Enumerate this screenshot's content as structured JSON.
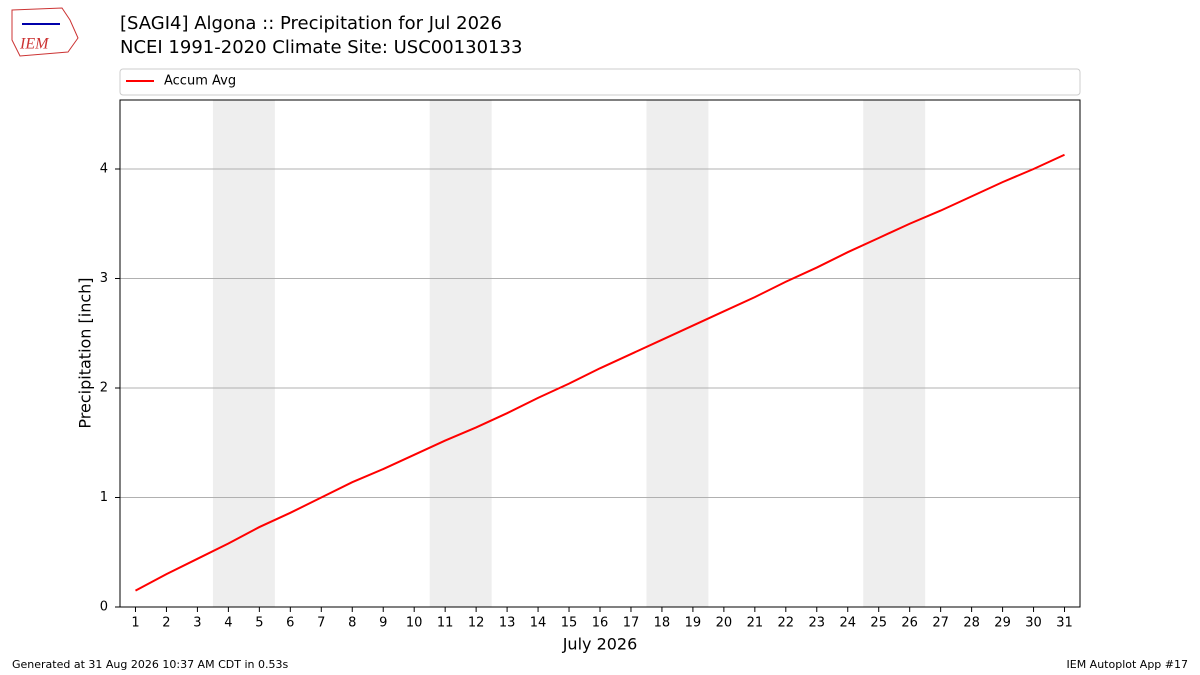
{
  "logo_text": "IEM",
  "footer": {
    "left": "Generated at 31 Aug 2026 10:37 AM CDT in 0.53s",
    "right": "IEM Autoplot App #17"
  },
  "chart_data": {
    "type": "line",
    "title": "[SAGI4] Algona :: Precipitation for Jul 2026",
    "subtitle": "NCEI 1991-2020 Climate Site: USC00130133",
    "xlabel": "July 2026",
    "ylabel": "Precipitation [inch]",
    "x": [
      1,
      2,
      3,
      4,
      5,
      6,
      7,
      8,
      9,
      10,
      11,
      12,
      13,
      14,
      15,
      16,
      17,
      18,
      19,
      20,
      21,
      22,
      23,
      24,
      25,
      26,
      27,
      28,
      29,
      30,
      31
    ],
    "series": [
      {
        "name": "Accum Avg",
        "color": "#ff0000",
        "values": [
          0.15,
          0.3,
          0.44,
          0.58,
          0.73,
          0.86,
          1.0,
          1.14,
          1.26,
          1.39,
          1.52,
          1.64,
          1.77,
          1.91,
          2.04,
          2.18,
          2.31,
          2.44,
          2.57,
          2.7,
          2.83,
          2.97,
          3.1,
          3.24,
          3.37,
          3.5,
          3.62,
          3.75,
          3.88,
          4.0,
          4.13
        ]
      }
    ],
    "weekend_spans": [
      [
        3.5,
        5.5
      ],
      [
        10.5,
        12.5
      ],
      [
        17.5,
        19.5
      ],
      [
        24.5,
        26.5
      ]
    ],
    "weekend_color": "#eeeeee",
    "xlim": [
      0.5,
      31.5
    ],
    "ylim": [
      0,
      4.63
    ],
    "xticks": [
      1,
      2,
      3,
      4,
      5,
      6,
      7,
      8,
      9,
      10,
      11,
      12,
      13,
      14,
      15,
      16,
      17,
      18,
      19,
      20,
      21,
      22,
      23,
      24,
      25,
      26,
      27,
      28,
      29,
      30,
      31
    ],
    "yticks": [
      0,
      1,
      2,
      3,
      4
    ],
    "grid": "y",
    "legend": "top"
  }
}
